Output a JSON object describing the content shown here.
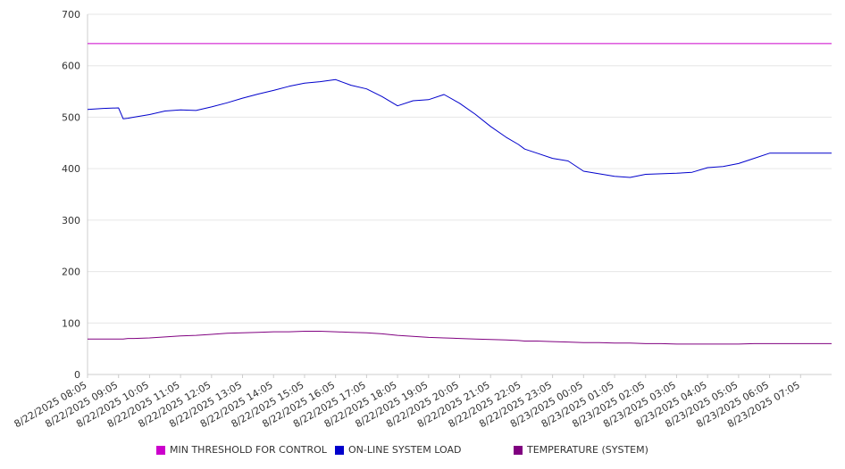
{
  "chart_data": {
    "type": "line",
    "title": "",
    "xlabel": "",
    "ylabel": "",
    "ylim": [
      0,
      700
    ],
    "yticks": [
      0,
      100,
      200,
      300,
      400,
      500,
      600,
      700
    ],
    "grid": true,
    "legend_position": "bottom",
    "x_tick_labels": [
      "8/22/2025 08:05",
      "8/22/2025 09:05",
      "8/22/2025 10:05",
      "8/22/2025 11:05",
      "8/22/2025 12:05",
      "8/22/2025 13:05",
      "8/22/2025 14:05",
      "8/22/2025 15:05",
      "8/22/2025 16:05",
      "8/22/2025 17:05",
      "8/22/2025 18:05",
      "8/22/2025 19:05",
      "8/22/2025 20:05",
      "8/22/2025 21:05",
      "8/22/2025 22:05",
      "8/22/2025 23:05",
      "8/23/2025 00:05",
      "8/23/2025 01:05",
      "8/23/2025 02:05",
      "8/23/2025 03:05",
      "8/23/2025 04:05",
      "8/23/2025 05:05",
      "8/23/2025 06:05",
      "8/23/2025 07:05"
    ],
    "x_hours": [
      0,
      0.5,
      1,
      1.15,
      1.3,
      1.5,
      2,
      2.5,
      3,
      3.5,
      4,
      4.5,
      5,
      5.5,
      6,
      6.5,
      7,
      7.5,
      8,
      8.5,
      9,
      9.5,
      10,
      10.5,
      11,
      11.5,
      12,
      12.5,
      13,
      13.5,
      13.9,
      14.1,
      14.5,
      15,
      15.5,
      16,
      16.5,
      17,
      17.5,
      18,
      18.5,
      19,
      19.5,
      20,
      20.5,
      21,
      21.5,
      22,
      22.5,
      23,
      23.5,
      24
    ],
    "series": [
      {
        "name": "MIN THRESHOLD FOR CONTROL",
        "color": "#cc00cc",
        "values": [
          643,
          643,
          643,
          643,
          643,
          643,
          643,
          643,
          643,
          643,
          643,
          643,
          643,
          643,
          643,
          643,
          643,
          643,
          643,
          643,
          643,
          643,
          643,
          643,
          643,
          643,
          643,
          643,
          643,
          643,
          643,
          643,
          643,
          643,
          643,
          643,
          643,
          643,
          643,
          643,
          643,
          643,
          643,
          643,
          643,
          643,
          643,
          643,
          643,
          643,
          643,
          643
        ]
      },
      {
        "name": "ON-LINE SYSTEM LOAD",
        "color": "#0000cc",
        "values": [
          515,
          517,
          518,
          497,
          498,
          500,
          505,
          512,
          514,
          513,
          520,
          528,
          537,
          545,
          552,
          560,
          566,
          569,
          573,
          562,
          555,
          540,
          522,
          532,
          534,
          544,
          527,
          506,
          482,
          461,
          447,
          438,
          430,
          420,
          415,
          395,
          390,
          385,
          383,
          389,
          390,
          391,
          393,
          402,
          404,
          410,
          420,
          430,
          430,
          430,
          430,
          430
        ]
      },
      {
        "name": "TEMPERATURE (SYSTEM)",
        "color": "#800080",
        "values": [
          69,
          69,
          69,
          69,
          70,
          70,
          71,
          73,
          75,
          76,
          78,
          80,
          81,
          82,
          83,
          83,
          84,
          84,
          83,
          82,
          81,
          79,
          76,
          74,
          72,
          71,
          70,
          69,
          68,
          67,
          66,
          65,
          65,
          64,
          63,
          62,
          62,
          61,
          61,
          60,
          60,
          59,
          59,
          59,
          59,
          59,
          60,
          60,
          60,
          60,
          60,
          60
        ]
      }
    ]
  }
}
